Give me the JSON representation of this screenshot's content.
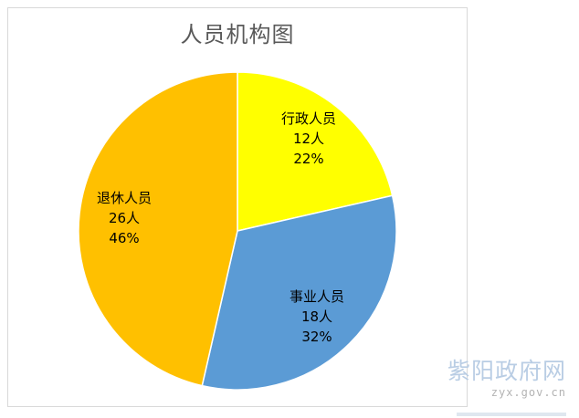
{
  "chart_data": {
    "type": "pie",
    "title": "人员机构图",
    "legend": "none",
    "slices": [
      {
        "label": "行政人员",
        "value": 12,
        "unit": "人",
        "value_text": "12人",
        "percent_text": "22%",
        "color": "#ffff00"
      },
      {
        "label": "事业人员",
        "value": 18,
        "unit": "人",
        "value_text": "18人",
        "percent_text": "32%",
        "color": "#5b9bd5"
      },
      {
        "label": "退休人员",
        "value": 26,
        "unit": "人",
        "value_text": "26人",
        "percent_text": "46%",
        "color": "#ffc000"
      }
    ]
  },
  "watermark": {
    "name": "紫阳政府网",
    "url": "zyx.gov.cn"
  }
}
